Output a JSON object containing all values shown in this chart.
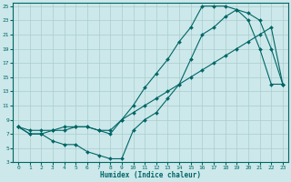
{
  "xlabel": "Humidex (Indice chaleur)",
  "bg_color": "#cce8ea",
  "grid_color": "#aacccc",
  "line_color": "#006666",
  "xlim": [
    -0.5,
    23.5
  ],
  "ylim": [
    3,
    25.5
  ],
  "xticks": [
    0,
    1,
    2,
    3,
    4,
    5,
    6,
    7,
    8,
    9,
    10,
    11,
    12,
    13,
    14,
    15,
    16,
    17,
    18,
    19,
    20,
    21,
    22,
    23
  ],
  "yticks": [
    3,
    5,
    7,
    9,
    11,
    13,
    15,
    17,
    19,
    21,
    23,
    25
  ],
  "line1": {
    "x": [
      0,
      1,
      2,
      3,
      4,
      5,
      6,
      7,
      8,
      9,
      10,
      11,
      12,
      13,
      14,
      15,
      16,
      17,
      18,
      19,
      20,
      21,
      22,
      23
    ],
    "y": [
      8,
      7,
      7,
      6,
      5.5,
      5.5,
      4.5,
      4,
      3.5,
      3.5,
      7.5,
      9,
      10,
      12,
      14,
      17.5,
      21,
      22,
      23.5,
      24.5,
      24,
      23,
      19,
      14
    ]
  },
  "line2": {
    "x": [
      0,
      1,
      2,
      3,
      4,
      5,
      6,
      7,
      8,
      9,
      10,
      11,
      12,
      13,
      14,
      15,
      16,
      17,
      18,
      19,
      20,
      21,
      22,
      23
    ],
    "y": [
      8,
      7,
      7,
      7.5,
      7.5,
      8,
      8,
      7.5,
      7,
      9,
      11,
      13.5,
      15.5,
      17.5,
      20,
      22,
      25,
      25,
      25,
      24.5,
      23,
      19,
      14,
      14
    ]
  },
  "line3": {
    "x": [
      0,
      1,
      2,
      3,
      4,
      5,
      6,
      7,
      8,
      9,
      10,
      11,
      12,
      13,
      14,
      15,
      16,
      17,
      18,
      19,
      20,
      21,
      22,
      23
    ],
    "y": [
      8,
      7.5,
      7.5,
      7.5,
      8,
      8,
      8,
      7.5,
      7.5,
      9,
      10,
      11,
      12,
      13,
      14,
      15,
      16,
      17,
      18,
      19,
      20,
      21,
      22,
      14
    ]
  }
}
